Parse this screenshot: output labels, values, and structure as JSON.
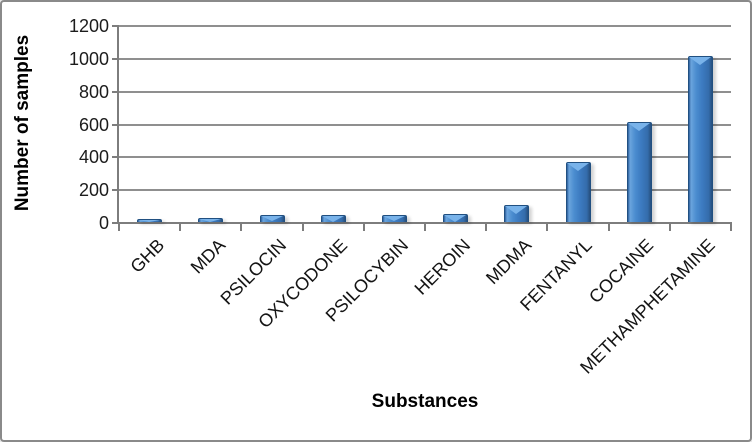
{
  "frame": {
    "background": "#ffffff",
    "border_color": "#8a8a8a"
  },
  "chart_data": {
    "type": "bar",
    "title": "",
    "categories": [
      "GHB",
      "MDA",
      "PSILOCIN",
      "OXYCODONE",
      "PSILOCYBIN",
      "HEROIN",
      "MDMA",
      "FENTANYL",
      "COCAINE",
      "METHAMPHETAMINE"
    ],
    "values": [
      20,
      25,
      40,
      45,
      40,
      50,
      105,
      365,
      610,
      1010
    ],
    "xlabel": "Substances",
    "ylabel": "Number of samples",
    "ylim": [
      0,
      1200
    ],
    "yticks": [
      "0",
      "200",
      "400",
      "600",
      "800",
      "1000",
      "1200"
    ],
    "ytick_interval": 200,
    "grid": "horizontal",
    "legend_position": "none",
    "colors": {
      "bar_main": "#3c7ac0",
      "bar_highlight": "#79b3ea",
      "bar_edge": "#215081",
      "gridline": "#8f8f8f",
      "axis": "#7d7d7d",
      "tick_text": "#1c1c1c",
      "title_text": "#000000"
    }
  }
}
